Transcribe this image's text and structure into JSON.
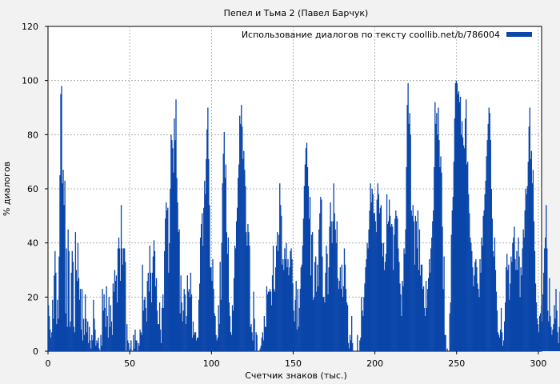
{
  "colors": {
    "background": "#f2f2f2",
    "plot_background": "#ffffff",
    "series": "#0b46aa",
    "grid": "#a0a0a0"
  },
  "chart_data": {
    "type": "bar",
    "title": "Пепел и Тьма 2 (Павел Барчук)",
    "xlabel": "Счетчик знаков (тыс.)",
    "ylabel": "% диалогов",
    "xlim": [
      0,
      302
    ],
    "ylim": [
      0,
      120
    ],
    "x_ticks": [
      0,
      50,
      100,
      150,
      200,
      250,
      300
    ],
    "y_ticks": [
      0,
      20,
      40,
      60,
      80,
      100,
      120
    ],
    "grid": true,
    "legend_position": "top-right",
    "series": [
      {
        "name": "Использование диалогов по тексту coollib.net/b/786004",
        "x_step": 0.5,
        "values": [
          17,
          13,
          8,
          5,
          7,
          19,
          12,
          28,
          37,
          29,
          10,
          19,
          12,
          35,
          65,
          95,
          98,
          62,
          67,
          54,
          63,
          14,
          38,
          9,
          45,
          37,
          9,
          11,
          29,
          37,
          33,
          9,
          7,
          44,
          30,
          26,
          40,
          27,
          19,
          23,
          8,
          23,
          4,
          12,
          6,
          21,
          12,
          7,
          11,
          3,
          9,
          4,
          1,
          6,
          4,
          19,
          12,
          8,
          2,
          4,
          3,
          5,
          1,
          0,
          6,
          2,
          23,
          15,
          21,
          16,
          9,
          24,
          13,
          5,
          20,
          9,
          17,
          11,
          6,
          25,
          22,
          30,
          26,
          28,
          18,
          38,
          42,
          38,
          26,
          54,
          38,
          32,
          38,
          38,
          33,
          0,
          10,
          4,
          3,
          0,
          1,
          4,
          0,
          0,
          6,
          1,
          8,
          4,
          4,
          0,
          3,
          2,
          8,
          7,
          6,
          32,
          15,
          19,
          20,
          16,
          11,
          26,
          29,
          22,
          39,
          29,
          18,
          29,
          35,
          41,
          37,
          24,
          27,
          15,
          10,
          10,
          18,
          8,
          3,
          16,
          21,
          16,
          37,
          49,
          55,
          52,
          53,
          29,
          40,
          60,
          80,
          78,
          75,
          66,
          86,
          78,
          93,
          64,
          55,
          44,
          45,
          14,
          28,
          18,
          11,
          15,
          23,
          21,
          10,
          13,
          28,
          22,
          23,
          20,
          29,
          21,
          5,
          11,
          6,
          7,
          7,
          4,
          5,
          5,
          19,
          25,
          42,
          47,
          51,
          39,
          53,
          63,
          58,
          71,
          82,
          90,
          71,
          54,
          31,
          31,
          26,
          34,
          23,
          14,
          13,
          6,
          4,
          5,
          17,
          10,
          33,
          19,
          40,
          62,
          73,
          81,
          64,
          69,
          44,
          36,
          42,
          18,
          13,
          7,
          6,
          17,
          15,
          27,
          39,
          38,
          48,
          53,
          64,
          69,
          87,
          84,
          91,
          83,
          71,
          74,
          67,
          61,
          44,
          39,
          47,
          44,
          39,
          9,
          10,
          7,
          4,
          22,
          12,
          0,
          7,
          6,
          0,
          0,
          0,
          1,
          2,
          5,
          7,
          4,
          13,
          9,
          9,
          24,
          21,
          22,
          22,
          23,
          22,
          17,
          28,
          39,
          23,
          22,
          31,
          39,
          44,
          37,
          43,
          62,
          54,
          50,
          32,
          34,
          30,
          38,
          34,
          40,
          31,
          34,
          28,
          31,
          37,
          38,
          34,
          25,
          15,
          11,
          19,
          26,
          8,
          23,
          9,
          16,
          23,
          31,
          32,
          39,
          49,
          61,
          69,
          75,
          77,
          68,
          61,
          49,
          57,
          28,
          43,
          44,
          19,
          20,
          33,
          35,
          22,
          32,
          24,
          45,
          51,
          57,
          56,
          35,
          20,
          20,
          18,
          29,
          39,
          36,
          21,
          31,
          46,
          55,
          48,
          40,
          48,
          62,
          51,
          45,
          40,
          48,
          27,
          23,
          26,
          31,
          23,
          32,
          20,
          24,
          38,
          32,
          23,
          18,
          17,
          3,
          1,
          6,
          4,
          13,
          3,
          0,
          0,
          0,
          0,
          0,
          6,
          0,
          0,
          4,
          5,
          20,
          15,
          13,
          20,
          25,
          31,
          34,
          40,
          38,
          45,
          52,
          62,
          55,
          60,
          58,
          51,
          51,
          48,
          44,
          56,
          62,
          58,
          51,
          53,
          54,
          40,
          35,
          40,
          30,
          33,
          36,
          58,
          47,
          48,
          56,
          50,
          46,
          47,
          46,
          30,
          43,
          49,
          52,
          50,
          49,
          38,
          33,
          25,
          21,
          13,
          26,
          24,
          38,
          36,
          45,
          68,
          91,
          99,
          84,
          88,
          80,
          52,
          50,
          54,
          48,
          32,
          50,
          48,
          38,
          52,
          30,
          45,
          28,
          32,
          32,
          23,
          24,
          16,
          13,
          26,
          16,
          23,
          27,
          34,
          29,
          38,
          42,
          48,
          52,
          68,
          92,
          84,
          88,
          80,
          90,
          78,
          68,
          72,
          66,
          46,
          23,
          35,
          6,
          6,
          0,
          1,
          0,
          0,
          14,
          18,
          43,
          52,
          57,
          70,
          86,
          99,
          100,
          99,
          95,
          96,
          92,
          94,
          80,
          85,
          79,
          76,
          75,
          86,
          93,
          69,
          70,
          58,
          51,
          42,
          40,
          37,
          31,
          24,
          28,
          33,
          34,
          31,
          25,
          23,
          20,
          34,
          29,
          42,
          39,
          50,
          52,
          58,
          63,
          72,
          78,
          84,
          90,
          88,
          78,
          60,
          49,
          37,
          35,
          42,
          30,
          22,
          15,
          7,
          6,
          5,
          8,
          16,
          7,
          2,
          4,
          11,
          18,
          31,
          36,
          30,
          32,
          19,
          25,
          35,
          33,
          40,
          42,
          46,
          34,
          30,
          37,
          30,
          42,
          35,
          20,
          31,
          28,
          38,
          45,
          42,
          52,
          60,
          58,
          61,
          70,
          83,
          90,
          71,
          74,
          62,
          67,
          48,
          37,
          25,
          18,
          12,
          10,
          7,
          13,
          14,
          17,
          11,
          21,
          29,
          38,
          42,
          54,
          38,
          15,
          11,
          27,
          13,
          9,
          6,
          8,
          10,
          17,
          12,
          23,
          15,
          7,
          3,
          9,
          22,
          10
        ]
      }
    ]
  }
}
